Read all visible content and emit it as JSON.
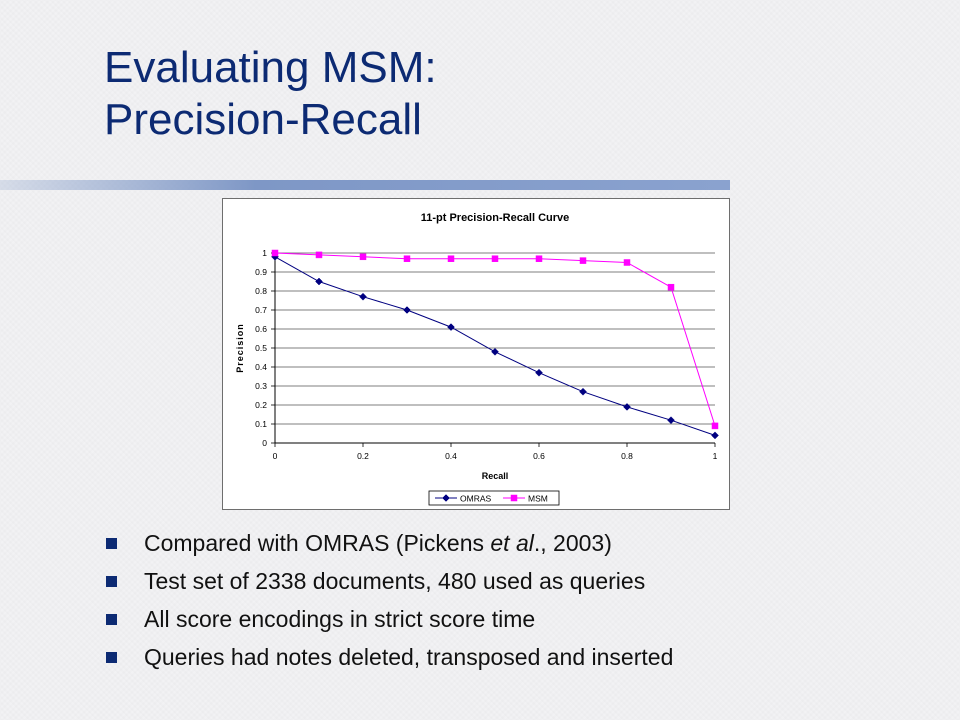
{
  "slide": {
    "title_line1": "Evaluating MSM:",
    "title_line2": "Precision-Recall",
    "bullets": [
      {
        "before": "Compared with OMRAS (Pickens ",
        "italic": "et al",
        "after": "., 2003)"
      },
      {
        "before": "Test set of 2338 documents, 480 used as queries",
        "italic": "",
        "after": ""
      },
      {
        "before": "All score encodings in strict score time",
        "italic": "",
        "after": ""
      },
      {
        "before": "Queries had notes deleted, transposed and inserted",
        "italic": "",
        "after": ""
      }
    ]
  },
  "chart_data": {
    "type": "line",
    "title": "11-pt Precision-Recall Curve",
    "xlabel": "Recall",
    "ylabel": "Precision",
    "xlim": [
      0,
      1
    ],
    "ylim": [
      0,
      1
    ],
    "xticks": [
      0,
      0.2,
      0.4,
      0.6,
      0.8,
      1
    ],
    "xtick_labels": [
      "0",
      "0.2",
      "0.4",
      "0.6",
      "0.8",
      "1"
    ],
    "yticks": [
      0,
      0.1,
      0.2,
      0.3,
      0.4,
      0.5,
      0.6,
      0.7,
      0.8,
      0.9,
      1
    ],
    "ytick_labels": [
      "0",
      "0.1",
      "0.2",
      "0.3",
      "0.4",
      "0.5",
      "0.6",
      "0.7",
      "0.8",
      "0.9",
      "1"
    ],
    "grid": "horizontal-major",
    "legend_position": "bottom",
    "x": [
      0,
      0.1,
      0.2,
      0.3,
      0.4,
      0.5,
      0.6,
      0.7,
      0.8,
      0.9,
      1
    ],
    "series": [
      {
        "name": "OMRAS",
        "color": "#000080",
        "marker": "diamond",
        "values": [
          0.98,
          0.85,
          0.77,
          0.7,
          0.61,
          0.48,
          0.37,
          0.27,
          0.19,
          0.12,
          0.04
        ]
      },
      {
        "name": "MSM",
        "color": "#ff00ff",
        "marker": "square",
        "values": [
          1.0,
          0.99,
          0.98,
          0.97,
          0.97,
          0.97,
          0.97,
          0.96,
          0.95,
          0.82,
          0.09
        ]
      }
    ]
  }
}
